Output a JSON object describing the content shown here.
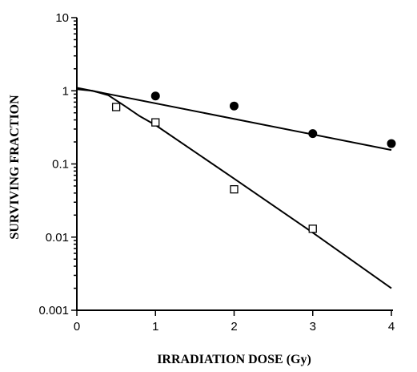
{
  "chart_data": {
    "type": "scatter",
    "xlabel": "IRRADIATION DOSE (Gy)",
    "ylabel": "SURVIVING FRACTION",
    "xlim": [
      0,
      4
    ],
    "ylim": [
      0.001,
      10
    ],
    "yscale": "log",
    "x_ticks": [
      "0",
      "1",
      "2",
      "3",
      "4"
    ],
    "y_ticks": [
      "0.001",
      "0.01",
      "0.1",
      "1",
      "10"
    ],
    "grid": false,
    "series": [
      {
        "marker": "filled-circle",
        "points": [
          [
            1,
            0.85
          ],
          [
            2,
            0.62
          ],
          [
            3,
            0.26
          ],
          [
            4,
            0.19
          ]
        ],
        "fit": [
          [
            0,
            1.1
          ],
          [
            4,
            0.155
          ]
        ]
      },
      {
        "marker": "open-square",
        "points": [
          [
            0.5,
            0.6
          ],
          [
            1,
            0.37
          ],
          [
            2,
            0.045
          ],
          [
            3,
            0.013
          ]
        ],
        "fit": [
          [
            0,
            1.05
          ],
          [
            0.2,
            1.0
          ],
          [
            0.4,
            0.87
          ],
          [
            0.6,
            0.63
          ],
          [
            0.8,
            0.45
          ],
          [
            1,
            0.34
          ],
          [
            2,
            0.063
          ],
          [
            3,
            0.0115
          ],
          [
            4,
            0.002
          ]
        ]
      }
    ]
  }
}
